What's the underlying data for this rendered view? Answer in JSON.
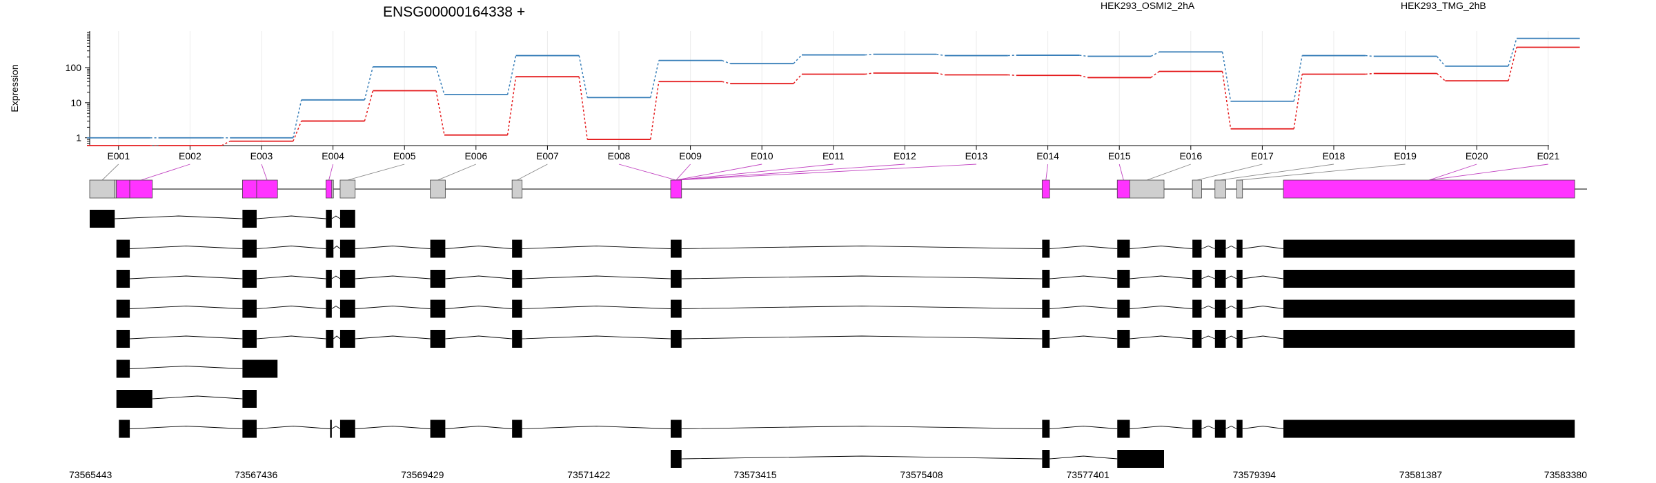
{
  "chart_data": {
    "type": "line",
    "title": "ENSG00000164338 +",
    "ylabel": "Expression",
    "xlabel": "",
    "y_scale": "log",
    "y_ticks": [
      1,
      10,
      100
    ],
    "y_range": [
      0.6,
      1100
    ],
    "grid": true,
    "legend_position": "top-right",
    "categories": [
      "E001",
      "E002",
      "E003",
      "E004",
      "E005",
      "E006",
      "E007",
      "E008",
      "E009",
      "E010",
      "E011",
      "E012",
      "E013",
      "E014",
      "E015",
      "E016",
      "E017",
      "E018",
      "E019",
      "E020",
      "E021"
    ],
    "series": [
      {
        "name": "HEK293_OSMI2_2hA",
        "color": "#e41a1c",
        "values": [
          0.6,
          0.6,
          0.8,
          3,
          22,
          1.2,
          55,
          0.9,
          40,
          35,
          65,
          70,
          62,
          60,
          52,
          78,
          1.8,
          65,
          68,
          42,
          380
        ]
      },
      {
        "name": "HEK293_TMG_2hB",
        "color": "#377eb8",
        "values": [
          1,
          1,
          1,
          12,
          105,
          17,
          220,
          14,
          160,
          130,
          230,
          240,
          220,
          225,
          210,
          280,
          11,
          220,
          210,
          110,
          680
        ]
      }
    ],
    "coordinate_axis": {
      "ticks": [
        "73565443",
        "73567436",
        "73569429",
        "73571422",
        "73573415",
        "73575408",
        "73577401",
        "73579394",
        "73581387",
        "73583380"
      ]
    },
    "gene_model": {
      "start": 73565443,
      "end": 73583380,
      "exonic_parts": [
        {
          "s": 73565443,
          "e": 73565743,
          "hl": false
        },
        {
          "s": 73565743,
          "e": 73565763,
          "hl": false
        },
        {
          "s": 73565763,
          "e": 73565923,
          "hl": true
        },
        {
          "s": 73565923,
          "e": 73566193,
          "hl": true
        },
        {
          "s": 73567273,
          "e": 73567443,
          "hl": true
        },
        {
          "s": 73567443,
          "e": 73567693,
          "hl": true
        },
        {
          "s": 73568273,
          "e": 73568343,
          "hl": true
        },
        {
          "s": 73568343,
          "e": 73568363,
          "hl": false
        },
        {
          "s": 73568443,
          "e": 73568623,
          "hl": false
        },
        {
          "s": 73569523,
          "e": 73569703,
          "hl": false
        },
        {
          "s": 73570503,
          "e": 73570623,
          "hl": false
        },
        {
          "s": 73572403,
          "e": 73572533,
          "hl": true
        },
        {
          "s": 73576853,
          "e": 73576943,
          "hl": true
        },
        {
          "s": 73577753,
          "e": 73577903,
          "hl": true
        },
        {
          "s": 73577903,
          "e": 73578313,
          "hl": false
        },
        {
          "s": 73578653,
          "e": 73578763,
          "hl": false
        },
        {
          "s": 73578923,
          "e": 73579053,
          "hl": false
        },
        {
          "s": 73579183,
          "e": 73579253,
          "hl": false
        },
        {
          "s": 73579743,
          "e": 73583233,
          "hl": true
        }
      ],
      "label_part_index": [
        0,
        3,
        5,
        6,
        8,
        9,
        10,
        11,
        11,
        11,
        11,
        11,
        11,
        12,
        13,
        14,
        15,
        16,
        17,
        18,
        18
      ],
      "transcripts": [
        {
          "exons": [
            [
              73565443,
              73565743
            ],
            [
              73567273,
              73567443
            ],
            [
              73568273,
              73568343
            ],
            [
              73568443,
              73568623
            ]
          ]
        },
        {
          "exons": [
            [
              73565763,
              73565923
            ],
            [
              73567273,
              73567443
            ],
            [
              73568273,
              73568363
            ],
            [
              73568443,
              73568623
            ],
            [
              73569523,
              73569703
            ],
            [
              73570503,
              73570623
            ],
            [
              73572403,
              73572533
            ],
            [
              73576853,
              73576943
            ],
            [
              73577753,
              73577903
            ],
            [
              73578653,
              73578763
            ],
            [
              73578923,
              73579053
            ],
            [
              73579183,
              73579253
            ],
            [
              73579743,
              73583233
            ]
          ]
        },
        {
          "exons": [
            [
              73565763,
              73565923
            ],
            [
              73567273,
              73567443
            ],
            [
              73568273,
              73568343
            ],
            [
              73568443,
              73568623
            ],
            [
              73569523,
              73569703
            ],
            [
              73570503,
              73570623
            ],
            [
              73572403,
              73572533
            ],
            [
              73576853,
              73576943
            ],
            [
              73577753,
              73577903
            ],
            [
              73578653,
              73578763
            ],
            [
              73578923,
              73579053
            ],
            [
              73579183,
              73579253
            ],
            [
              73579743,
              73583233
            ]
          ]
        },
        {
          "exons": [
            [
              73565763,
              73565923
            ],
            [
              73567273,
              73567443
            ],
            [
              73568273,
              73568343
            ],
            [
              73568443,
              73568623
            ],
            [
              73569523,
              73569703
            ],
            [
              73570503,
              73570623
            ],
            [
              73572403,
              73572533
            ],
            [
              73576853,
              73576943
            ],
            [
              73577753,
              73577903
            ],
            [
              73578653,
              73578763
            ],
            [
              73578923,
              73579053
            ],
            [
              73579183,
              73579253
            ],
            [
              73579743,
              73583233
            ]
          ]
        },
        {
          "exons": [
            [
              73565763,
              73565923
            ],
            [
              73567273,
              73567443
            ],
            [
              73568273,
              73568363
            ],
            [
              73568443,
              73568623
            ],
            [
              73569523,
              73569703
            ],
            [
              73570503,
              73570623
            ],
            [
              73572403,
              73572533
            ],
            [
              73576853,
              73576943
            ],
            [
              73577753,
              73577903
            ],
            [
              73578653,
              73578763
            ],
            [
              73578923,
              73579053
            ],
            [
              73579183,
              73579253
            ],
            [
              73579743,
              73583233
            ]
          ]
        },
        {
          "exons": [
            [
              73565763,
              73565923
            ],
            [
              73567273,
              73567693
            ]
          ]
        },
        {
          "exons": [
            [
              73565763,
              73566193
            ],
            [
              73567273,
              73567443
            ]
          ]
        },
        {
          "exons": [
            [
              73565793,
              73565923
            ],
            [
              73567273,
              73567443
            ],
            [
              73568323,
              73568343
            ],
            [
              73568443,
              73568623
            ],
            [
              73569523,
              73569703
            ],
            [
              73570503,
              73570623
            ],
            [
              73572403,
              73572533
            ],
            [
              73576853,
              73576943
            ],
            [
              73577753,
              73577903
            ],
            [
              73578653,
              73578763
            ],
            [
              73578923,
              73579053
            ],
            [
              73579183,
              73579253
            ],
            [
              73579743,
              73583233
            ]
          ]
        },
        {
          "exons": [
            [
              73572403,
              73572533
            ],
            [
              73576853,
              73576943
            ],
            [
              73577753,
              73578313
            ]
          ]
        }
      ]
    }
  }
}
